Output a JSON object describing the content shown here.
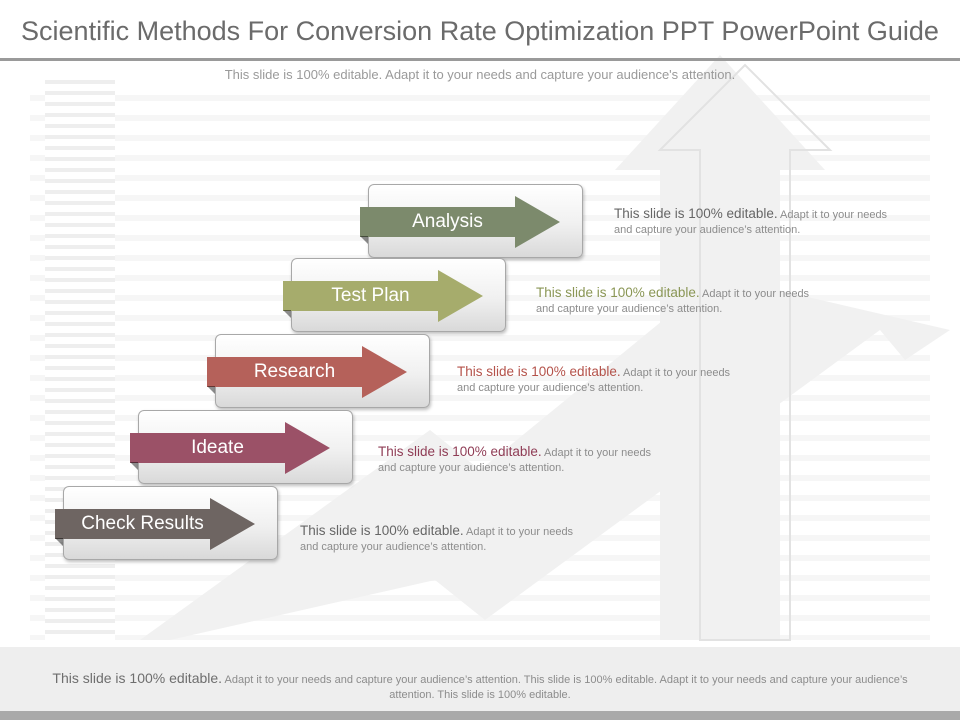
{
  "slide": {
    "title": "Scientific Methods For Conversion Rate Optimization PPT PowerPoint Guide",
    "subtitle": "This slide is 100% editable. Adapt it to your needs and capture your audience's attention."
  },
  "steps": [
    {
      "label": "Analysis",
      "color": "#7c8a6c",
      "desc_head": "This slide is 100% editable.",
      "desc_body": "Adapt it to your needs and capture your audience’s attention.",
      "desc_color": "#666666"
    },
    {
      "label": "Test Plan",
      "color": "#a6ac6c",
      "desc_head": "This slide is 100% editable.",
      "desc_body": "Adapt it to your needs and capture your audience’s attention.",
      "desc_color": "#8a9655"
    },
    {
      "label": "Research",
      "color": "#b5615a",
      "desc_head": "This slide is 100% editable.",
      "desc_body": "Adapt it to your needs and capture your audience’s attention.",
      "desc_color": "#b4524a"
    },
    {
      "label": "Ideate",
      "color": "#9b5167",
      "desc_head": "This slide is 100% editable.",
      "desc_body": "Adapt it to your needs and capture your audience’s attention.",
      "desc_color": "#8f3c55"
    },
    {
      "label": "Check Results",
      "color": "#6e6562",
      "desc_head": "This slide is 100% editable.",
      "desc_body": "Adapt it to your needs and capture your audience’s attention.",
      "desc_color": "#666666"
    }
  ],
  "footer": {
    "head": "This slide is 100% editable.",
    "body": "Adapt it to your needs and capture your audience’s attention. This slide is 100% editable. Adapt it to your needs and capture your audience’s attention. This slide is 100% editable."
  }
}
